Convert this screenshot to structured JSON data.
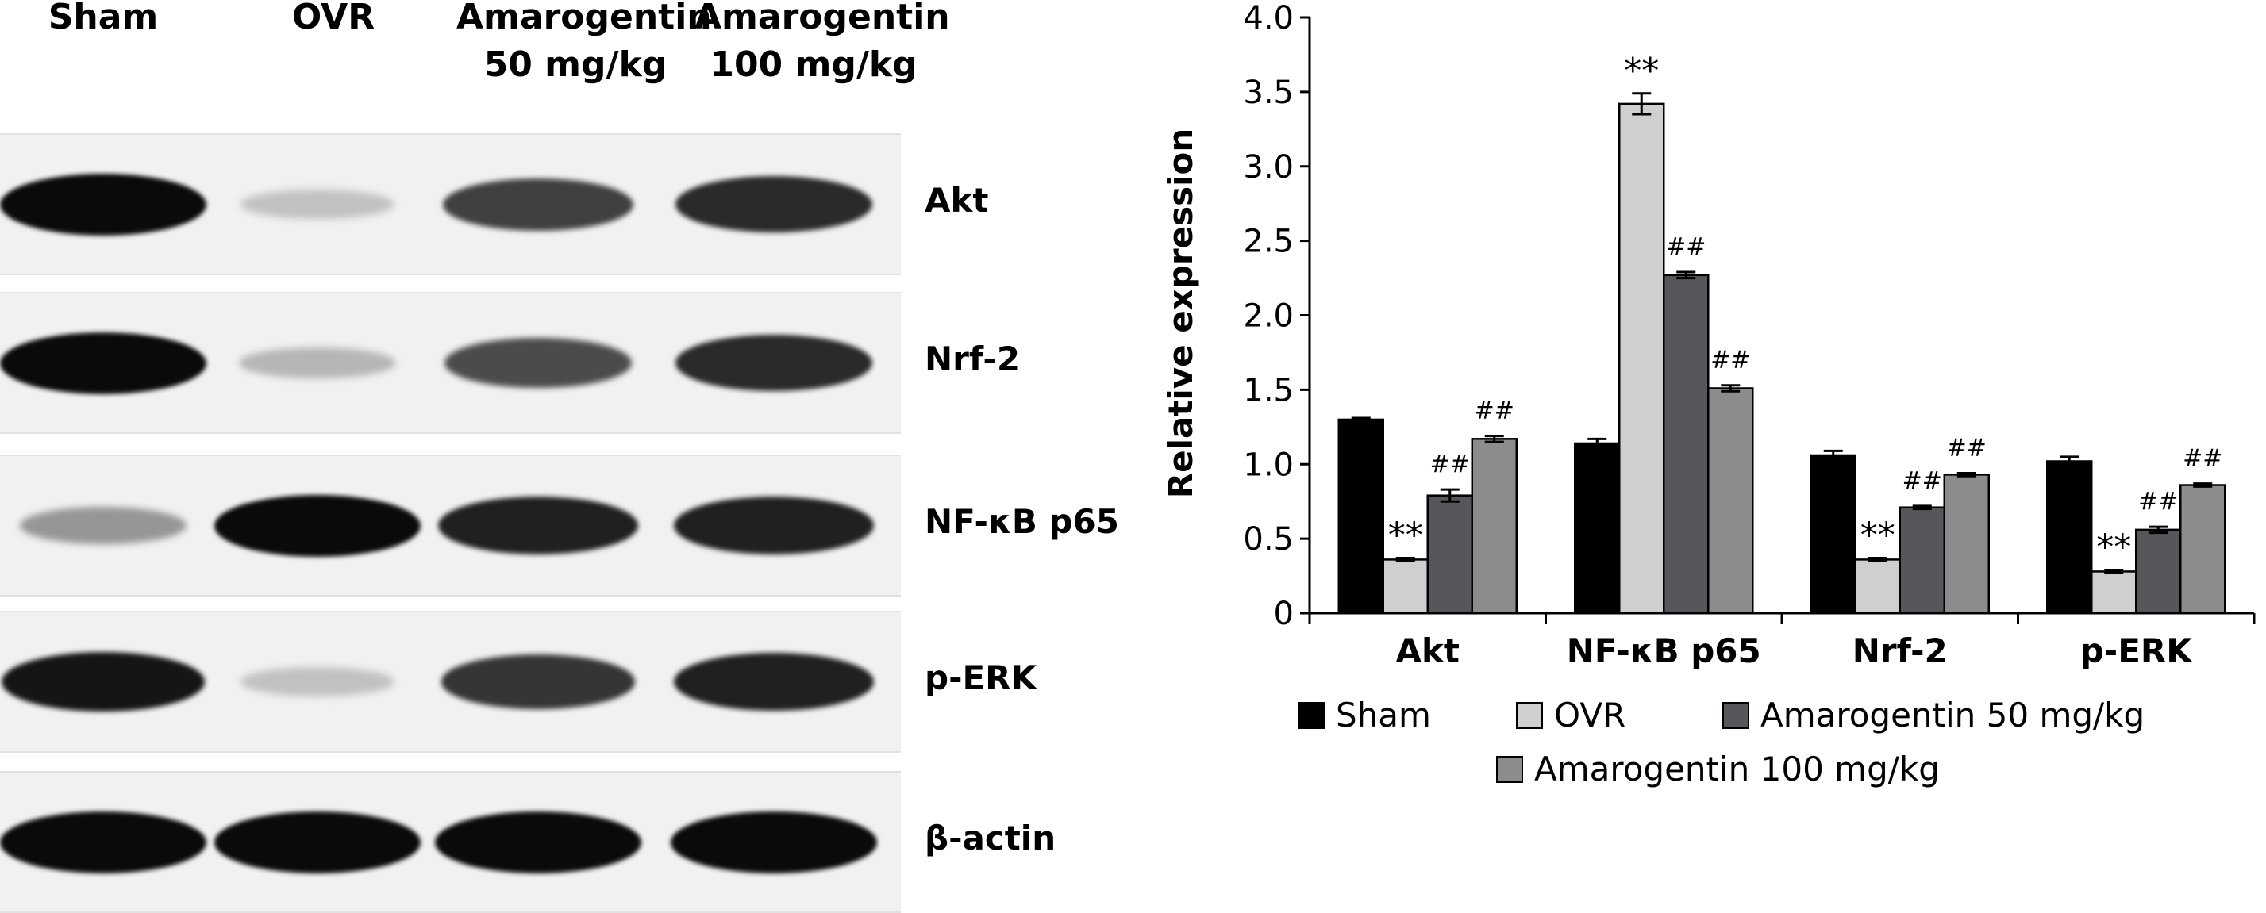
{
  "blot": {
    "lane_labels": [
      {
        "line1": "Sham",
        "line2": ""
      },
      {
        "line1": "OVR",
        "line2": ""
      },
      {
        "line1": "Amarogentin",
        "line2": "50 mg/kg"
      },
      {
        "line1": "Amarogentin",
        "line2": "100 mg/kg"
      }
    ],
    "rows": [
      {
        "label": "Akt",
        "intensities": [
          1.0,
          0.15,
          0.75,
          0.85
        ]
      },
      {
        "label": "Nrf-2",
        "intensities": [
          1.0,
          0.2,
          0.7,
          0.85
        ]
      },
      {
        "label": "NF-κB p65",
        "intensities": [
          0.35,
          1.0,
          0.9,
          0.9
        ]
      },
      {
        "label": "p-ERK",
        "intensities": [
          0.95,
          0.15,
          0.8,
          0.9
        ]
      },
      {
        "label": "β-actin",
        "intensities": [
          1.0,
          1.0,
          1.0,
          1.0
        ]
      }
    ]
  },
  "chart_data": {
    "type": "bar",
    "ylabel": "Relative expression",
    "xlabel": "",
    "ylim": [
      0,
      4.0
    ],
    "yticks": [
      "0",
      "0.5",
      "1.0",
      "1.5",
      "2.0",
      "2.5",
      "3.0",
      "3.5",
      "4.0"
    ],
    "categories": [
      "Akt",
      "NF-κB p65",
      "Nrf-2",
      "p-ERK"
    ],
    "series": [
      {
        "name": "Sham",
        "color": "#000000",
        "values": [
          1.3,
          1.14,
          1.06,
          1.02
        ],
        "errors": [
          0.01,
          0.03,
          0.03,
          0.03
        ],
        "marks": [
          "",
          "",
          "",
          ""
        ]
      },
      {
        "name": "OVR",
        "color": "#cfcfcf",
        "values": [
          0.36,
          3.42,
          0.36,
          0.28
        ],
        "errors": [
          0.01,
          0.07,
          0.01,
          0.01
        ],
        "marks": [
          "**",
          "**",
          "**",
          "**"
        ]
      },
      {
        "name": "Amarogentin 50 mg/kg",
        "color": "#55575b",
        "values": [
          0.79,
          2.27,
          0.71,
          0.56
        ],
        "errors": [
          0.04,
          0.02,
          0.01,
          0.02
        ],
        "marks": [
          "##",
          "##",
          "##",
          "##"
        ]
      },
      {
        "name": "Amarogentin 100 mg/kg",
        "color": "#8c8c8c",
        "values": [
          1.17,
          1.51,
          0.93,
          0.86
        ],
        "errors": [
          0.02,
          0.02,
          0.01,
          0.01
        ],
        "marks": [
          "##",
          "##",
          "##",
          "##"
        ]
      }
    ]
  }
}
